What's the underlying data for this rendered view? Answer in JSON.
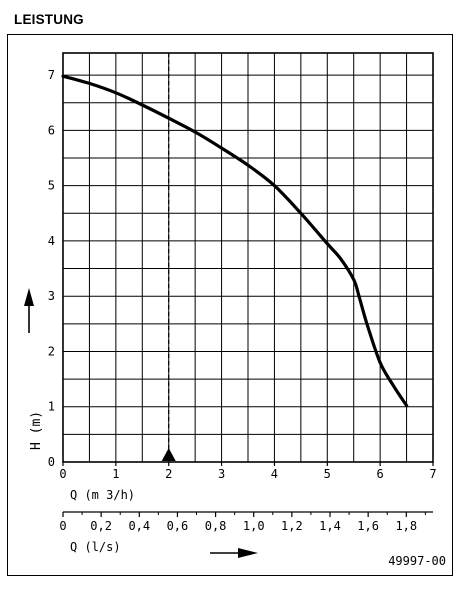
{
  "header": {
    "title": "LEISTUNG"
  },
  "chart_data": {
    "type": "line",
    "title": "",
    "x_primary": {
      "label": "Q (m 3/h)",
      "ticks": [
        "0",
        "1",
        "2",
        "3",
        "4",
        "5",
        "6",
        "7"
      ],
      "lim": [
        0,
        7
      ]
    },
    "x_secondary": {
      "label": "Q (l/s)",
      "ticks": [
        "0",
        "0,2",
        "0,4",
        "0,6",
        "0,8",
        "1,0",
        "1,2",
        "1,4",
        "1,6",
        "1,8"
      ],
      "lim": [
        0,
        1.94
      ]
    },
    "y": {
      "label": "H (m)",
      "ticks": [
        "0",
        "1",
        "2",
        "3",
        "4",
        "5",
        "6",
        "7"
      ],
      "lim": [
        0,
        7.4
      ]
    },
    "grid": true,
    "series": [
      {
        "x": [
          0,
          0.5,
          1.0,
          1.5,
          2.0,
          2.5,
          3.0,
          3.5,
          4.0,
          4.5,
          5.0,
          5.25,
          5.5,
          5.6,
          5.75,
          6.0,
          6.25,
          6.5
        ],
        "y": [
          6.98,
          6.85,
          6.68,
          6.46,
          6.22,
          5.97,
          5.68,
          5.37,
          5.0,
          4.5,
          3.95,
          3.68,
          3.3,
          3.0,
          2.5,
          1.8,
          1.38,
          1.02
        ]
      }
    ],
    "reference_line": {
      "x": 2
    },
    "annotation": "49997-00"
  }
}
